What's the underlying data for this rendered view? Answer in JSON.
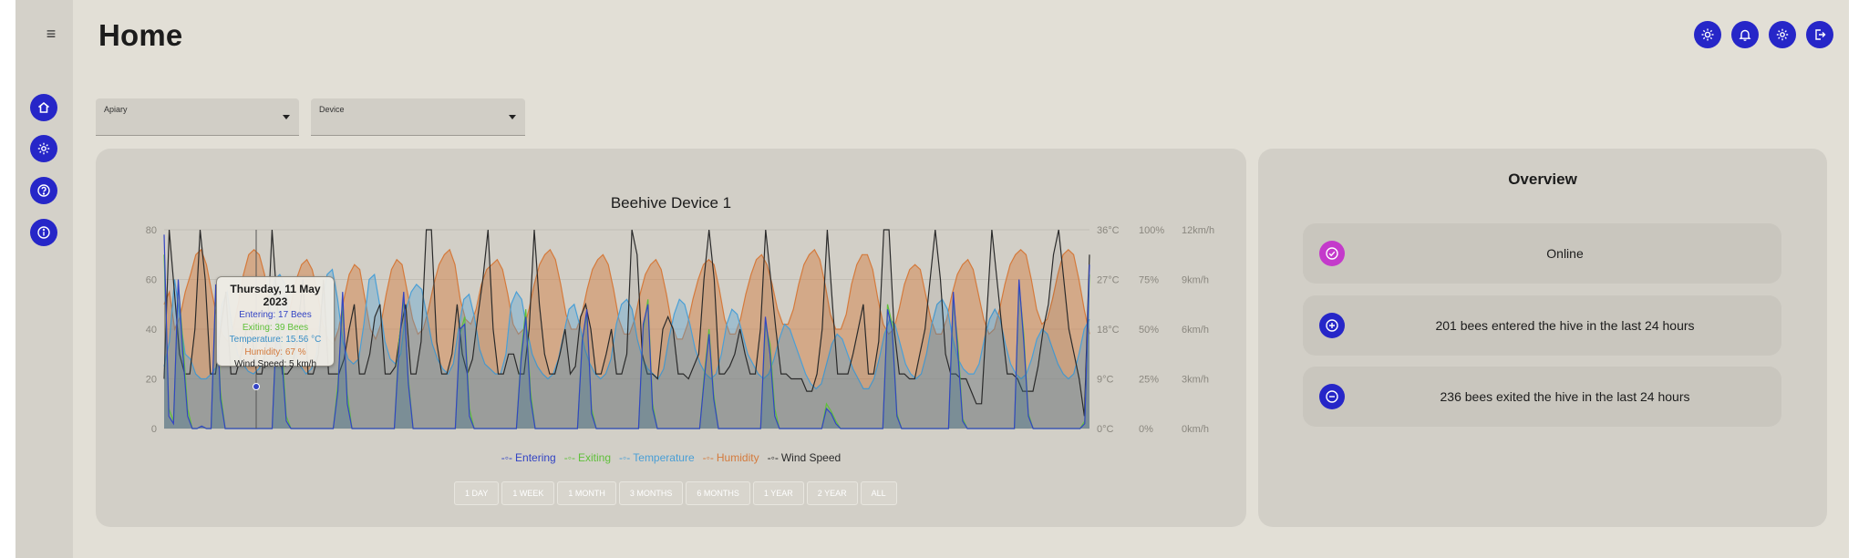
{
  "page": {
    "title": "Home"
  },
  "sidebar": {
    "menu_icon": "hamburger-icon",
    "items": [
      {
        "name": "home",
        "icon": "home-icon"
      },
      {
        "name": "settings",
        "icon": "gear-icon"
      },
      {
        "name": "help",
        "icon": "help-icon"
      },
      {
        "name": "info",
        "icon": "info-icon"
      }
    ]
  },
  "topbar": {
    "icons": [
      "brightness-icon",
      "bell-icon",
      "gear-icon",
      "logout-icon"
    ]
  },
  "filters": {
    "apiary_label": "Apiary",
    "device_label": "Device"
  },
  "chart": {
    "title": "Beehive Device 1",
    "tooltip": {
      "date": "Thursday, 11 May 2023",
      "entering": "Entering: 17 Bees",
      "exiting": "Exiting: 39 Bees",
      "temperature": "Temperature: 15.56 °C",
      "humidity": "Humidity: 67 %",
      "wind": "Wind Speed: 5 km/h"
    },
    "ranges": [
      "1 DAY",
      "1 WEEK",
      "1 MONTH",
      "3 MONTHS",
      "6 MONTHS",
      "1 YEAR",
      "2 YEAR",
      "ALL"
    ]
  },
  "chart_data": {
    "type": "line",
    "title": "Beehive Device 1",
    "xlabel": "",
    "ylabel": "",
    "y_ticks": [
      "0",
      "20",
      "40",
      "60",
      "80"
    ],
    "temp_ticks": [
      "0°C",
      "9°C",
      "18°C",
      "27°C",
      "36°C"
    ],
    "humidity_ticks": [
      "0%",
      "25%",
      "50%",
      "75%",
      "100%"
    ],
    "wind_ticks": [
      "0km/h",
      "3km/h",
      "6km/h",
      "9km/h",
      "12km/h"
    ],
    "ylim": [
      0,
      80
    ],
    "legend_position": "bottom",
    "series": [
      {
        "name": "Entering",
        "color": "#3344c4",
        "values": [
          78,
          5,
          2,
          60,
          30,
          5,
          0,
          0,
          1,
          0,
          0,
          58,
          12,
          0,
          0,
          0,
          0,
          0,
          0,
          0,
          0,
          0,
          0,
          0,
          45,
          30,
          3,
          0,
          0,
          0,
          0,
          0,
          0,
          0,
          0,
          0,
          0,
          15,
          55,
          10,
          0,
          0,
          0,
          0,
          0,
          0,
          0,
          0,
          0,
          0,
          32,
          55,
          18,
          0,
          0,
          0,
          0,
          0,
          0,
          0,
          0,
          0,
          0,
          40,
          42,
          5,
          0,
          0,
          0,
          0,
          0,
          0,
          0,
          0,
          0,
          0,
          28,
          45,
          12,
          0,
          0,
          0,
          0,
          0,
          0,
          0,
          0,
          0,
          0,
          35,
          48,
          6,
          0,
          0,
          0,
          0,
          0,
          0,
          0,
          0,
          0,
          0,
          42,
          50,
          8,
          0,
          0,
          0,
          0,
          0,
          0,
          0,
          0,
          0,
          0,
          20,
          38,
          12,
          0,
          0,
          0,
          0,
          0,
          0,
          0,
          0,
          0,
          0,
          45,
          30,
          5,
          0,
          0,
          0,
          0,
          0,
          0,
          0,
          0,
          0,
          0,
          8,
          6,
          2,
          0,
          0,
          0,
          0,
          0,
          0,
          0,
          0,
          0,
          0,
          48,
          40,
          5,
          0,
          0,
          0,
          0,
          0,
          0,
          0,
          0,
          0,
          0,
          0,
          55,
          30,
          3,
          0,
          0,
          0,
          0,
          0,
          0,
          0,
          0,
          0,
          0,
          0,
          60,
          35,
          5,
          0,
          0,
          0,
          0,
          0,
          0,
          0,
          0,
          0,
          0,
          0,
          2,
          66
        ]
      },
      {
        "name": "Exiting",
        "color": "#5fc03a",
        "values": [
          70,
          8,
          3,
          58,
          35,
          8,
          0,
          0,
          1,
          0,
          0,
          55,
          15,
          0,
          0,
          0,
          0,
          0,
          0,
          0,
          0,
          0,
          0,
          0,
          48,
          36,
          5,
          0,
          0,
          0,
          0,
          0,
          0,
          0,
          0,
          0,
          0,
          18,
          50,
          14,
          0,
          0,
          0,
          0,
          0,
          0,
          0,
          0,
          0,
          0,
          35,
          52,
          20,
          0,
          0,
          0,
          0,
          0,
          0,
          0,
          0,
          0,
          0,
          38,
          45,
          8,
          0,
          0,
          0,
          0,
          0,
          0,
          0,
          0,
          0,
          0,
          30,
          48,
          15,
          0,
          0,
          0,
          0,
          0,
          0,
          0,
          0,
          0,
          0,
          36,
          46,
          8,
          0,
          0,
          0,
          0,
          0,
          0,
          0,
          0,
          0,
          0,
          40,
          52,
          10,
          0,
          0,
          0,
          0,
          0,
          0,
          0,
          0,
          0,
          0,
          22,
          40,
          14,
          0,
          0,
          0,
          0,
          0,
          0,
          0,
          0,
          0,
          0,
          42,
          34,
          8,
          0,
          0,
          0,
          0,
          0,
          0,
          0,
          0,
          0,
          0,
          10,
          7,
          3,
          0,
          0,
          0,
          0,
          0,
          0,
          0,
          0,
          0,
          0,
          50,
          42,
          6,
          0,
          0,
          0,
          0,
          0,
          0,
          0,
          0,
          0,
          0,
          0,
          52,
          34,
          4,
          0,
          0,
          0,
          0,
          0,
          0,
          0,
          0,
          0,
          0,
          0,
          58,
          38,
          6,
          0,
          0,
          0,
          0,
          0,
          0,
          0,
          0,
          0,
          0,
          0,
          3,
          62
        ]
      },
      {
        "name": "Temperature",
        "color": "#4a9fd6",
        "values": [
          25,
          35,
          60,
          45,
          30,
          28,
          22,
          20,
          20,
          22,
          25,
          50,
          55,
          40,
          30,
          26,
          23,
          22,
          24,
          28,
          45,
          60,
          62,
          58,
          40,
          30,
          25,
          22,
          24,
          30,
          50,
          62,
          64,
          52,
          35,
          28,
          26,
          28,
          42,
          60,
          62,
          50,
          35,
          28,
          26,
          30,
          48,
          55,
          58,
          56,
          45,
          34,
          28,
          24,
          22,
          26,
          40,
          52,
          54,
          45,
          32,
          26,
          24,
          22,
          22,
          30,
          50,
          55,
          52,
          40,
          30,
          25,
          22,
          20,
          22,
          28,
          38,
          48,
          50,
          42,
          32,
          26,
          22,
          20,
          22,
          28,
          42,
          50,
          52,
          48,
          36,
          28,
          24,
          22,
          20,
          24,
          36,
          46,
          52,
          50,
          42,
          32,
          26,
          22,
          20,
          22,
          30,
          42,
          48,
          46,
          38,
          30,
          26,
          22,
          20,
          22,
          28,
          36,
          42,
          40,
          34,
          28,
          22,
          18,
          16,
          18,
          26,
          34,
          38,
          36,
          30,
          24,
          20,
          16,
          16,
          20,
          28,
          38,
          44,
          42,
          34,
          26,
          22,
          20,
          22,
          30,
          42,
          50,
          52,
          48,
          36,
          28,
          24,
          22,
          22,
          26,
          36,
          44,
          48,
          44,
          34,
          26,
          22,
          20,
          22,
          28,
          36,
          40,
          38,
          32,
          26,
          22,
          20,
          22,
          30,
          40,
          44
        ]
      },
      {
        "name": "Humidity",
        "color": "#d47a3c",
        "values": [
          50,
          55,
          40,
          45,
          55,
          62,
          70,
          72,
          66,
          55,
          45,
          38,
          35,
          40,
          50,
          62,
          70,
          72,
          70,
          62,
          45,
          38,
          36,
          40,
          50,
          60,
          66,
          68,
          64,
          55,
          42,
          36,
          34,
          40,
          52,
          62,
          66,
          64,
          52,
          40,
          36,
          42,
          54,
          64,
          68,
          66,
          55,
          44,
          38,
          40,
          48,
          58,
          66,
          70,
          72,
          66,
          52,
          44,
          42,
          48,
          58,
          64,
          66,
          68,
          64,
          54,
          42,
          38,
          40,
          48,
          58,
          66,
          70,
          72,
          68,
          58,
          46,
          40,
          40,
          46,
          56,
          64,
          68,
          70,
          66,
          56,
          44,
          38,
          38,
          44,
          54,
          62,
          66,
          68,
          64,
          54,
          42,
          36,
          36,
          42,
          52,
          60,
          66,
          68,
          66,
          56,
          44,
          38,
          38,
          44,
          54,
          62,
          68,
          70,
          66,
          58,
          48,
          42,
          42,
          48,
          58,
          66,
          70,
          72,
          68,
          58,
          46,
          40,
          40,
          46,
          58,
          66,
          70,
          70,
          64,
          52,
          42,
          38,
          40,
          48,
          58,
          64,
          66,
          64,
          54,
          44,
          38,
          38,
          44,
          54,
          62,
          66,
          68,
          64,
          54,
          44,
          38,
          40,
          48,
          58,
          66,
          70,
          72,
          70,
          60,
          48,
          42,
          44,
          52,
          62,
          70,
          72,
          70,
          60,
          48,
          38
        ]
      },
      {
        "name": "Wind Speed",
        "color": "#2a2a2a",
        "values": [
          20,
          80,
          55,
          30,
          22,
          22,
          40,
          80,
          60,
          22,
          22,
          40,
          55,
          22,
          22,
          30,
          40,
          40,
          22,
          22,
          35,
          80,
          50,
          22,
          22,
          25,
          40,
          60,
          22,
          22,
          30,
          60,
          22,
          22,
          22,
          28,
          40,
          50,
          22,
          22,
          30,
          45,
          50,
          22,
          22,
          25,
          40,
          50,
          22,
          22,
          35,
          80,
          80,
          35,
          22,
          22,
          30,
          50,
          30,
          22,
          28,
          45,
          60,
          80,
          40,
          22,
          22,
          30,
          30,
          22,
          22,
          40,
          80,
          50,
          30,
          22,
          22,
          30,
          40,
          22,
          25,
          45,
          50,
          40,
          22,
          22,
          30,
          40,
          22,
          22,
          30,
          80,
          70,
          30,
          22,
          22,
          20,
          40,
          45,
          40,
          22,
          22,
          20,
          25,
          30,
          60,
          80,
          60,
          22,
          22,
          25,
          30,
          40,
          30,
          22,
          22,
          40,
          80,
          60,
          40,
          22,
          22,
          20,
          20,
          20,
          15,
          15,
          22,
          40,
          80,
          50,
          22,
          22,
          22,
          30,
          40,
          50,
          22,
          22,
          35,
          80,
          80,
          40,
          22,
          22,
          20,
          20,
          30,
          40,
          60,
          80,
          60,
          30,
          22,
          22,
          20,
          20,
          15,
          10,
          10,
          45,
          80,
          60,
          40,
          22,
          22,
          20,
          15,
          15,
          15,
          25,
          40,
          50,
          70,
          80,
          60,
          40,
          30,
          20,
          5,
          70
        ]
      }
    ]
  },
  "overview": {
    "title": "Overview",
    "items": [
      {
        "text": "Online",
        "icon": "check-icon",
        "color": "#c43acb"
      },
      {
        "text": "201 bees entered the hive in the last 24 hours",
        "icon": "plus-icon",
        "color": "#2626c8"
      },
      {
        "text": "236 bees exited the hive in the last 24 hours",
        "icon": "minus-icon",
        "color": "#2626c8"
      }
    ]
  }
}
